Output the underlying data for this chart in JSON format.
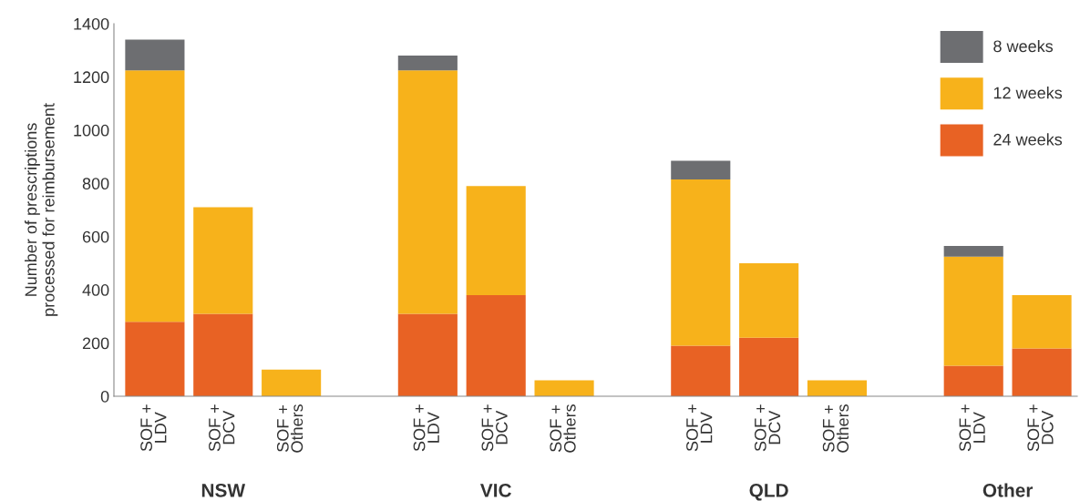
{
  "chart_data": {
    "type": "bar",
    "stacked": true,
    "ylabel": "Number of prescriptions\nprocessed for reimbursement",
    "categories": [
      "SOF +\nLDV",
      "SOF +\nDCV",
      "SOF +\nOthers",
      null,
      "SOF +\nLDV",
      "SOF +\nDCV",
      "SOF +\nOthers",
      null,
      "SOF +\nLDV",
      "SOF +\nDCV",
      "SOF +\nOthers",
      null,
      "SOF +\nLDV",
      "SOF +\nDCV"
    ],
    "series": [
      {
        "name": "24 weeks",
        "color": "#e86224",
        "values": [
          280,
          310,
          null,
          null,
          310,
          380,
          null,
          null,
          190,
          220,
          null,
          null,
          115,
          180
        ]
      },
      {
        "name": "12 weeks",
        "color": "#f7b21b",
        "values": [
          945,
          400,
          100,
          null,
          915,
          410,
          60,
          null,
          625,
          280,
          60,
          null,
          410,
          200
        ]
      },
      {
        "name": "8 weeks",
        "color": "#6d6e71",
        "values": [
          115,
          null,
          null,
          null,
          55,
          null,
          null,
          null,
          70,
          null,
          null,
          null,
          40,
          null
        ]
      }
    ],
    "ylim": [
      0,
      1400
    ],
    "yticks": [
      0,
      200,
      400,
      600,
      800,
      1000,
      1200,
      1400
    ],
    "legend": "top right",
    "grid": false,
    "annotations": [
      "NSW",
      "VIC",
      "QLD",
      "Other"
    ]
  }
}
